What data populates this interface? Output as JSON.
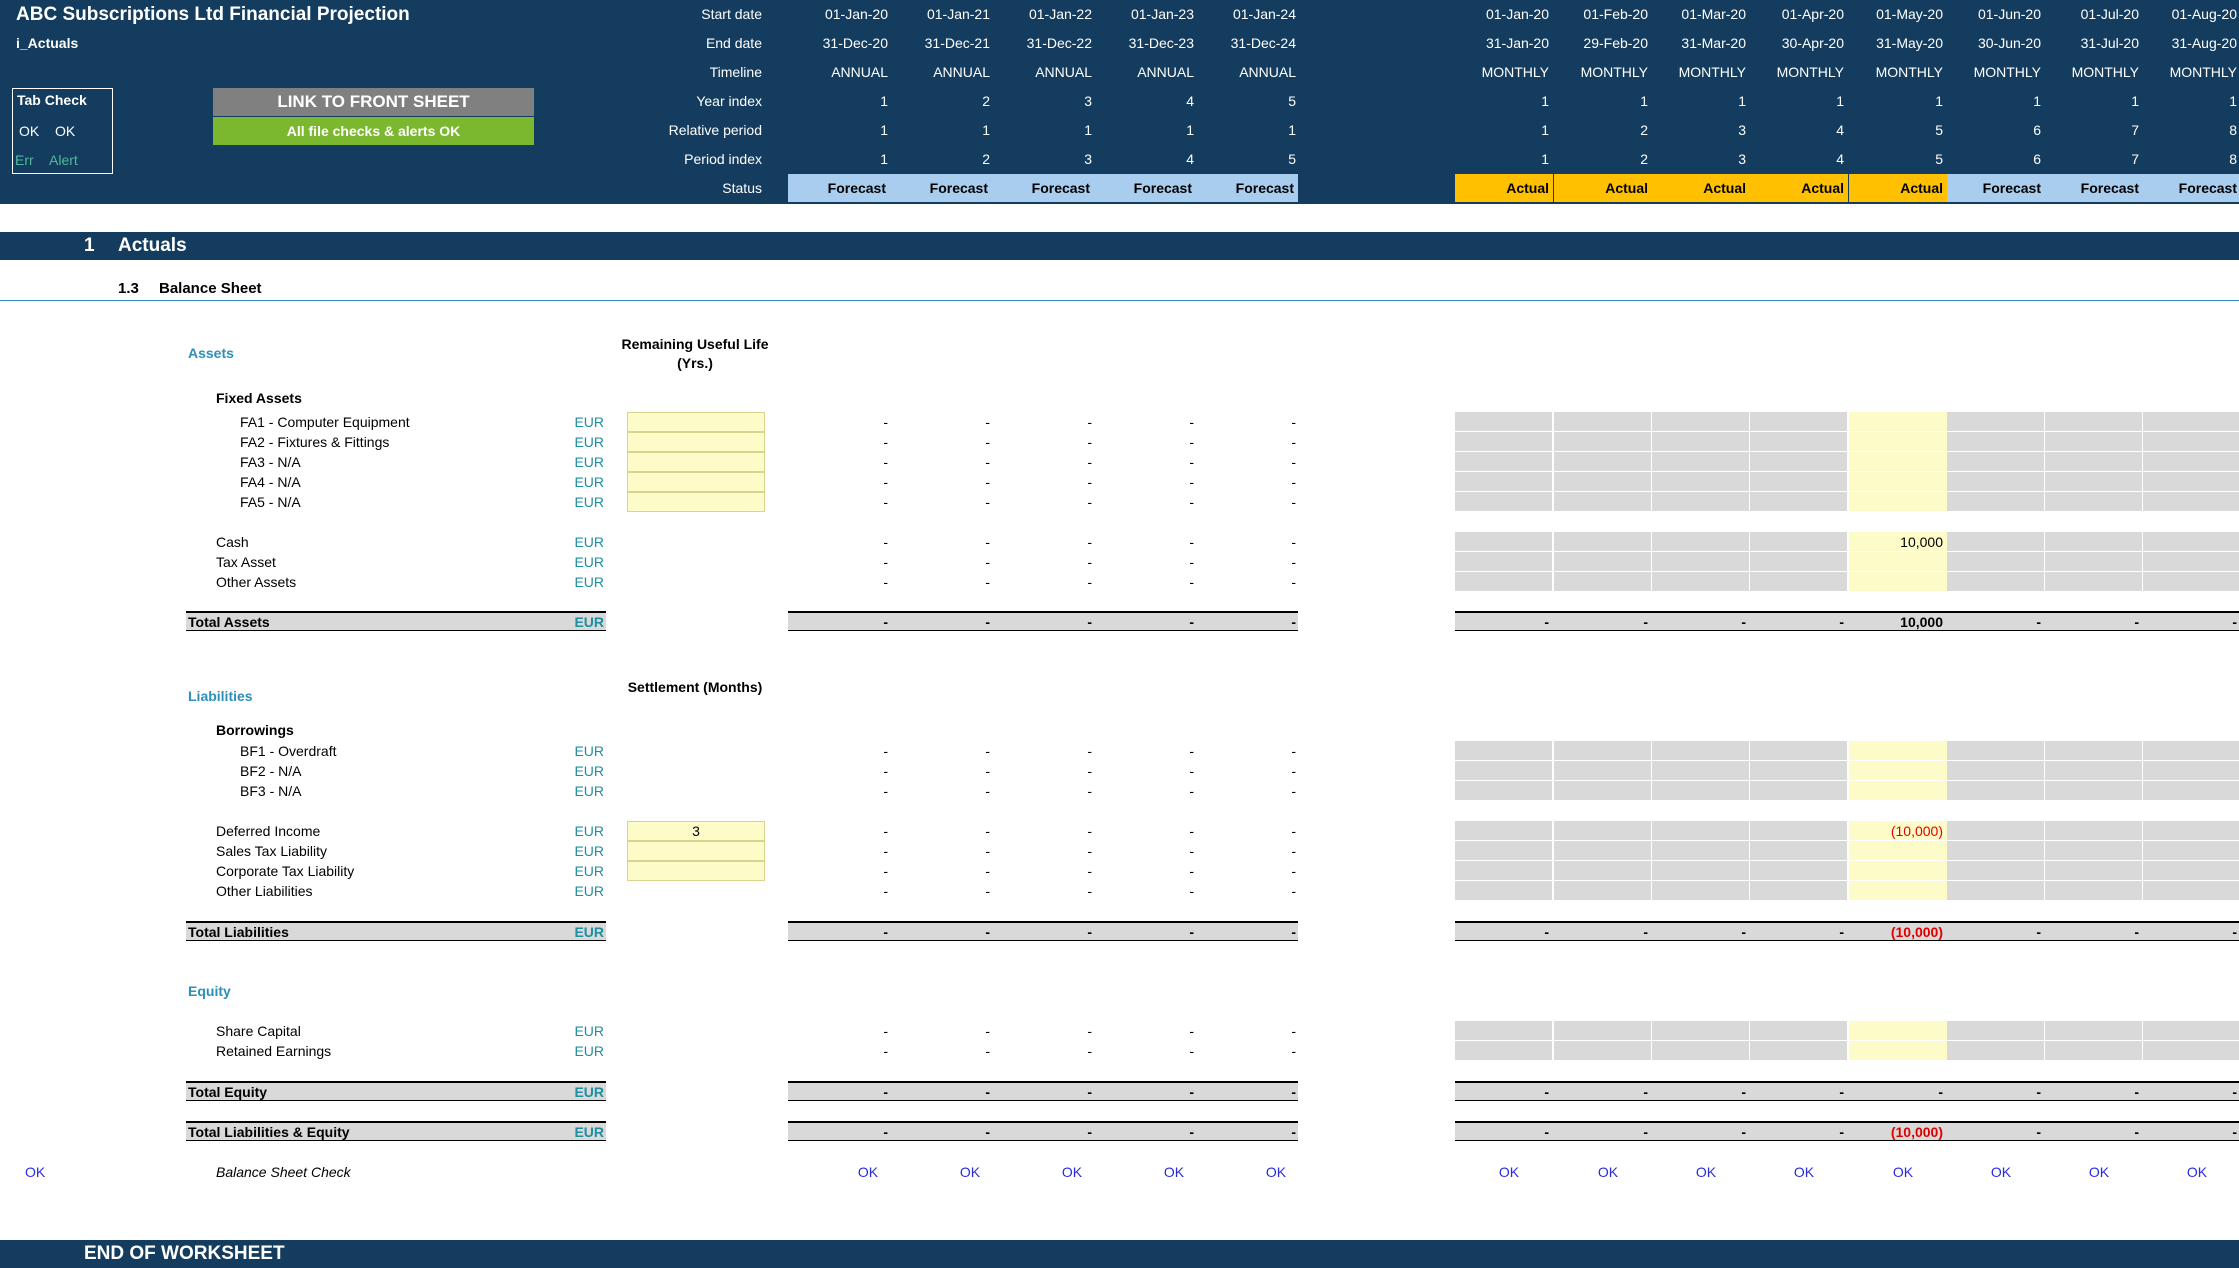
{
  "header": {
    "title": "ABC Subscriptions Ltd Financial Projection",
    "sheet_name": "i_Actuals",
    "tab_check": {
      "title": "Tab Check",
      "ok1": "OK",
      "ok2": "OK",
      "err": "Err",
      "alert": "Alert"
    },
    "link_button": "LINK TO FRONT SHEET",
    "checks_banner": "All file checks & alerts OK",
    "row_labels": [
      "Start date",
      "End date",
      "Timeline",
      "Year index",
      "Relative period",
      "Period index",
      "Status"
    ],
    "annual": [
      {
        "start": "01-Jan-20",
        "end": "31-Dec-20",
        "timeline": "ANNUAL",
        "year": "1",
        "rel": "1",
        "period": "1",
        "status": "Forecast"
      },
      {
        "start": "01-Jan-21",
        "end": "31-Dec-21",
        "timeline": "ANNUAL",
        "year": "2",
        "rel": "1",
        "period": "2",
        "status": "Forecast"
      },
      {
        "start": "01-Jan-22",
        "end": "31-Dec-22",
        "timeline": "ANNUAL",
        "year": "3",
        "rel": "1",
        "period": "3",
        "status": "Forecast"
      },
      {
        "start": "01-Jan-23",
        "end": "31-Dec-23",
        "timeline": "ANNUAL",
        "year": "4",
        "rel": "1",
        "period": "4",
        "status": "Forecast"
      },
      {
        "start": "01-Jan-24",
        "end": "31-Dec-24",
        "timeline": "ANNUAL",
        "year": "5",
        "rel": "1",
        "period": "5",
        "status": "Forecast"
      }
    ],
    "monthly": [
      {
        "start": "01-Jan-20",
        "end": "31-Jan-20",
        "timeline": "MONTHLY",
        "year": "1",
        "rel": "1",
        "period": "1",
        "status": "Actual"
      },
      {
        "start": "01-Feb-20",
        "end": "29-Feb-20",
        "timeline": "MONTHLY",
        "year": "1",
        "rel": "2",
        "period": "2",
        "status": "Actual"
      },
      {
        "start": "01-Mar-20",
        "end": "31-Mar-20",
        "timeline": "MONTHLY",
        "year": "1",
        "rel": "3",
        "period": "3",
        "status": "Actual"
      },
      {
        "start": "01-Apr-20",
        "end": "30-Apr-20",
        "timeline": "MONTHLY",
        "year": "1",
        "rel": "4",
        "period": "4",
        "status": "Actual"
      },
      {
        "start": "01-May-20",
        "end": "31-May-20",
        "timeline": "MONTHLY",
        "year": "1",
        "rel": "5",
        "period": "5",
        "status": "Actual"
      },
      {
        "start": "01-Jun-20",
        "end": "30-Jun-20",
        "timeline": "MONTHLY",
        "year": "1",
        "rel": "6",
        "period": "6",
        "status": "Forecast"
      },
      {
        "start": "01-Jul-20",
        "end": "31-Jul-20",
        "timeline": "MONTHLY",
        "year": "1",
        "rel": "7",
        "period": "7",
        "status": "Forecast"
      },
      {
        "start": "01-Aug-20",
        "end": "31-Aug-20",
        "timeline": "MONTHLY",
        "year": "1",
        "rel": "8",
        "period": "8",
        "status": "Forecast"
      }
    ]
  },
  "section": {
    "number": "1",
    "title": "Actuals",
    "sub_number": "1.3",
    "sub_title": "Balance Sheet"
  },
  "assets": {
    "heading": "Assets",
    "col_header": "Remaining Useful Life (Yrs.)",
    "fixed_heading": "Fixed Assets",
    "fixed_rows": [
      "FA1 - Computer Equipment",
      "FA2 - Fixtures & Fittings",
      "FA3 - N/A",
      "FA4 - N/A",
      "FA5 - N/A"
    ],
    "other_rows": [
      "Cash",
      "Tax Asset",
      "Other Assets"
    ],
    "cash_may": "10,000",
    "total_label": "Total Assets",
    "total_may": "10,000"
  },
  "liabilities": {
    "heading": "Liabilities",
    "col_header": "Settlement (Months)",
    "borrow_heading": "Borrowings",
    "borrow_rows": [
      "BF1 - Overdraft",
      "BF2 - N/A",
      "BF3 - N/A"
    ],
    "other_rows": [
      "Deferred Income",
      "Sales Tax Liability",
      "Corporate Tax Liability",
      "Other Liabilities"
    ],
    "deferred_settlement": "3",
    "deferred_may": "(10,000)",
    "total_label": "Total Liabilities",
    "total_may": "(10,000)"
  },
  "equity": {
    "heading": "Equity",
    "rows": [
      "Share Capital",
      "Retained Earnings"
    ],
    "total_label": "Total Equity"
  },
  "total_le": {
    "label": "Total Liabilities & Equity",
    "may": "(10,000)"
  },
  "check": {
    "left": "OK",
    "label": "Balance Sheet Check",
    "value": "OK"
  },
  "unit": "EUR",
  "dash": "-",
  "footer": "END OF WORKSHEET"
}
